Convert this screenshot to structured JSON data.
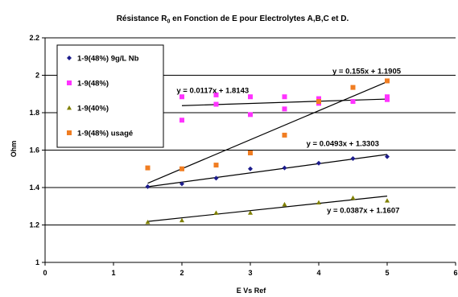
{
  "chart_data": {
    "type": "scatter",
    "title": {
      "main": "Résistance R",
      "subscript": "0",
      "rest": " en Fonction de E pour Electrolytes A,B,C et D."
    },
    "xlabel": "E Vs Ref",
    "ylabel": "Ohm",
    "xlim": [
      0,
      6
    ],
    "ylim": [
      1,
      2.2
    ],
    "x_ticks": [
      0,
      1,
      2,
      3,
      4,
      5,
      6
    ],
    "x_tick_labels": [
      "0",
      "1",
      "2",
      "3",
      "4",
      "5",
      "6"
    ],
    "y_ticks": [
      1,
      1.2,
      1.4,
      1.6,
      1.8,
      2,
      2.2
    ],
    "y_tick_labels": [
      "1",
      "1.2",
      "1.4",
      "1.6",
      "1.8",
      "2",
      "2.2"
    ],
    "grid": "horizontal",
    "legend_position": "top-left",
    "series": [
      {
        "name": "1-9(48%) 9g/L Nb",
        "marker": "diamond",
        "color": "#1c1c8c",
        "points": [
          [
            1.5,
            1.405
          ],
          [
            2.0,
            1.42
          ],
          [
            2.5,
            1.45
          ],
          [
            3.0,
            1.5
          ],
          [
            3.5,
            1.505
          ],
          [
            4.0,
            1.53
          ],
          [
            4.5,
            1.555
          ],
          [
            5.0,
            1.565
          ]
        ],
        "trendline": {
          "equation": "y = 0.0493x + 1.3303",
          "slope": 0.0493,
          "intercept": 1.3303,
          "x_range": [
            1.5,
            5.0
          ]
        }
      },
      {
        "name": "1-9(48%)",
        "marker": "square",
        "color": "#ff33ff",
        "points": [
          [
            2.0,
            1.76
          ],
          [
            2.0,
            1.885
          ],
          [
            2.5,
            1.845
          ],
          [
            2.5,
            1.895
          ],
          [
            3.0,
            1.79
          ],
          [
            3.0,
            1.885
          ],
          [
            3.5,
            1.82
          ],
          [
            3.5,
            1.885
          ],
          [
            4.0,
            1.85
          ],
          [
            4.0,
            1.875
          ],
          [
            4.5,
            1.86
          ],
          [
            5.0,
            1.87
          ],
          [
            5.0,
            1.885
          ]
        ],
        "trendline": {
          "equation": "y = 0.0117x + 1.8143",
          "slope": 0.0117,
          "intercept": 1.8143,
          "x_range": [
            2.0,
            5.0
          ]
        }
      },
      {
        "name": "1-9(40%)",
        "marker": "triangle",
        "color": "#808000",
        "points": [
          [
            1.5,
            1.215
          ],
          [
            2.0,
            1.225
          ],
          [
            2.5,
            1.265
          ],
          [
            3.0,
            1.265
          ],
          [
            3.5,
            1.31
          ],
          [
            4.0,
            1.32
          ],
          [
            4.5,
            1.345
          ],
          [
            5.0,
            1.33
          ]
        ],
        "trendline": {
          "equation": "y = 0.0387x + 1.1607",
          "slope": 0.0387,
          "intercept": 1.1607,
          "x_range": [
            1.5,
            5.0
          ]
        }
      },
      {
        "name": "1-9(48%) usagé",
        "marker": "square",
        "color": "#f07d22",
        "points": [
          [
            1.5,
            1.505
          ],
          [
            2.0,
            1.5
          ],
          [
            2.5,
            1.52
          ],
          [
            3.0,
            1.585
          ],
          [
            3.5,
            1.68
          ],
          [
            4.0,
            1.86
          ],
          [
            4.5,
            1.935
          ],
          [
            5.0,
            1.97
          ]
        ],
        "trendline": {
          "equation": "y = 0.155x + 1.1905",
          "slope": 0.155,
          "intercept": 1.1905,
          "x_range": [
            1.5,
            5.0
          ]
        }
      }
    ],
    "equation_labels": [
      {
        "series": 0,
        "text": "y = 0.0493x + 1.3303",
        "x": 4.35,
        "y": 1.622
      },
      {
        "series": 1,
        "text": "y = 0.0117x + 1.8143",
        "x": 2.45,
        "y": 1.905
      },
      {
        "series": 2,
        "text": "y = 0.0387x + 1.1607",
        "x": 4.65,
        "y": 1.265
      },
      {
        "series": 3,
        "text": "y = 0.155x + 1.1905",
        "x": 4.7,
        "y": 2.008
      }
    ]
  }
}
